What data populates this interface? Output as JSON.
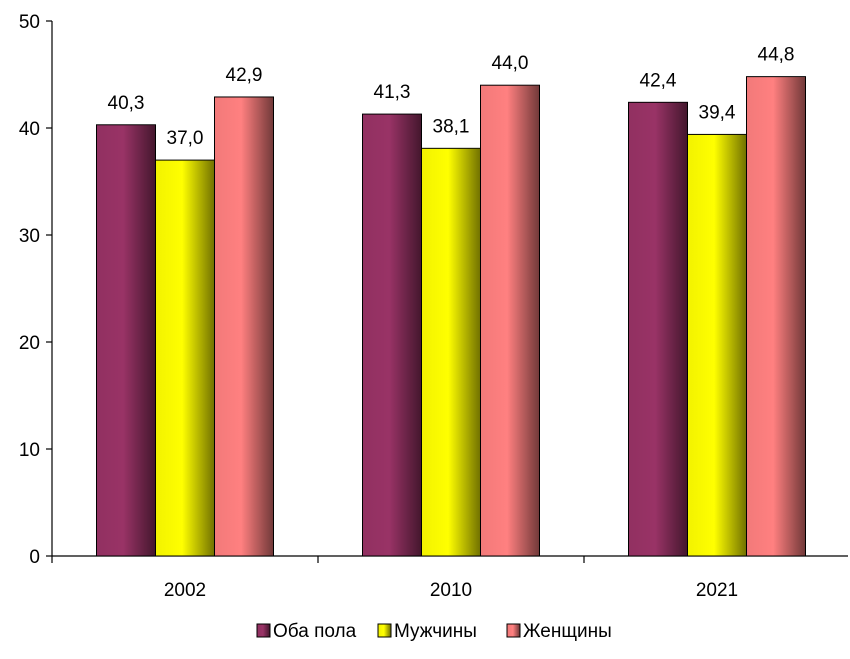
{
  "chart_data": {
    "type": "bar",
    "title": "",
    "xlabel": "",
    "ylabel": "",
    "categories": [
      "2002",
      "2010",
      "2021"
    ],
    "series": [
      {
        "name": "Оба пола",
        "values": [
          40.3,
          41.3,
          42.4
        ],
        "labels": [
          "40,3",
          "41,3",
          "42,4"
        ],
        "color": "#993366"
      },
      {
        "name": "Мужчины",
        "values": [
          37.0,
          38.1,
          39.4
        ],
        "labels": [
          "37,0",
          "38,1",
          "39,4"
        ],
        "color": "#ffff00"
      },
      {
        "name": "Женщины",
        "values": [
          42.9,
          44.0,
          44.8
        ],
        "labels": [
          "42,9",
          "44,0",
          "44,8"
        ],
        "color": "#ff8080"
      }
    ],
    "ylim": [
      0,
      50
    ],
    "yticks": [
      0,
      10,
      20,
      30,
      40,
      50
    ],
    "grid": false,
    "legend": "bottom"
  }
}
